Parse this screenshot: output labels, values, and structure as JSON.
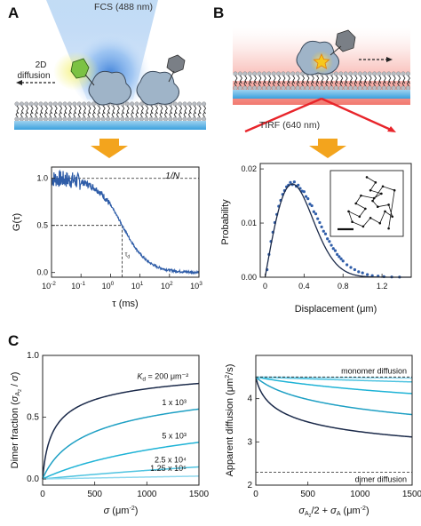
{
  "panels": {
    "A": {
      "letter": "A",
      "illustration": {
        "beam_label": "FCS (488 nm)",
        "diffusion_label_line1": "2D",
        "diffusion_label_line2": "diffusion"
      }
    },
    "B": {
      "letter": "B",
      "illustration": {
        "beam_label": "TIRF (640 nm)"
      }
    },
    "C": {
      "letter": "C"
    }
  },
  "colors": {
    "accent_arrow": "#f3a41d",
    "trace_blue": "#2f5da8",
    "cyan": "#1fb3d6",
    "dark_navy": "#1b2a4a",
    "tirf_red": "#e8252b",
    "membrane_blue": "#3aa0dd",
    "protein_fill": "#9fb4c8",
    "bleached_fill": "#7a7f86",
    "green_label": "#7cc243",
    "star_yellow": "#f7c81b"
  },
  "chart_data": [
    {
      "id": "A-fcs",
      "type": "line",
      "xlabel": "τ (ms)",
      "ylabel": "G(τ)",
      "xscale": "log",
      "xlim": [
        0.01,
        1000
      ],
      "ylim": [
        -0.05,
        1.12
      ],
      "x_ticks": [
        0.01,
        0.1,
        1,
        10,
        100,
        1000
      ],
      "x_tick_labels": [
        {
          "base": "10",
          "exp": "-2"
        },
        {
          "base": "10",
          "exp": "-1"
        },
        {
          "base": "10",
          "exp": "0"
        },
        {
          "base": "10",
          "exp": "1"
        },
        {
          "base": "10",
          "exp": "2"
        },
        {
          "base": "10",
          "exp": "3"
        }
      ],
      "y_ticks": [
        0.0,
        0.5,
        1.0
      ],
      "y_tick_labels": [
        "0.0",
        "0.5",
        "1.0"
      ],
      "annotations": {
        "one_over_n": "1/N",
        "tau_d": "τd",
        "tau_d_value": 2.5
      },
      "curve": {
        "amplitude": 1.0,
        "tau_d": 2.5
      }
    },
    {
      "id": "B-displacement",
      "type": "scatter",
      "xlabel": "Displacement (μm)",
      "ylabel": "Probability",
      "xlim": [
        -0.05,
        1.5
      ],
      "ylim": [
        0,
        0.021
      ],
      "x_ticks": [
        0,
        0.4,
        0.8,
        1.2
      ],
      "x_tick_labels": [
        "0",
        "0.4",
        "0.8",
        "1.2"
      ],
      "y_ticks": [
        0.0,
        0.01,
        0.02
      ],
      "y_tick_labels": [
        "0.00",
        "0.01",
        "0.02"
      ],
      "fit": {
        "model": "rayleigh",
        "sigma": 0.28,
        "peak": 0.0172
      },
      "points": [
        [
          0.02,
          0.0014
        ],
        [
          0.04,
          0.0042
        ],
        [
          0.06,
          0.0066
        ],
        [
          0.08,
          0.0083
        ],
        [
          0.1,
          0.0101
        ],
        [
          0.12,
          0.0116
        ],
        [
          0.14,
          0.0131
        ],
        [
          0.16,
          0.0142
        ],
        [
          0.18,
          0.0153
        ],
        [
          0.2,
          0.016
        ],
        [
          0.22,
          0.0167
        ],
        [
          0.24,
          0.017
        ],
        [
          0.26,
          0.0175
        ],
        [
          0.28,
          0.0171
        ],
        [
          0.3,
          0.0176
        ],
        [
          0.32,
          0.0168
        ],
        [
          0.34,
          0.017
        ],
        [
          0.36,
          0.0164
        ],
        [
          0.38,
          0.0159
        ],
        [
          0.4,
          0.0158
        ],
        [
          0.42,
          0.0149
        ],
        [
          0.44,
          0.0145
        ],
        [
          0.46,
          0.0135
        ],
        [
          0.48,
          0.0132
        ],
        [
          0.5,
          0.0121
        ],
        [
          0.52,
          0.0117
        ],
        [
          0.54,
          0.0108
        ],
        [
          0.56,
          0.0101
        ],
        [
          0.58,
          0.0093
        ],
        [
          0.6,
          0.0085
        ],
        [
          0.62,
          0.008
        ],
        [
          0.64,
          0.0071
        ],
        [
          0.66,
          0.0066
        ],
        [
          0.68,
          0.0059
        ],
        [
          0.7,
          0.0053
        ],
        [
          0.72,
          0.0049
        ],
        [
          0.74,
          0.0042
        ],
        [
          0.76,
          0.0038
        ],
        [
          0.78,
          0.0034
        ],
        [
          0.8,
          0.003
        ],
        [
          0.84,
          0.0023
        ],
        [
          0.88,
          0.0018
        ],
        [
          0.92,
          0.0014
        ],
        [
          0.96,
          0.001
        ],
        [
          1.0,
          0.0008
        ],
        [
          1.05,
          0.0005
        ],
        [
          1.1,
          0.0003
        ],
        [
          1.16,
          0.0002
        ],
        [
          1.22,
          0.0001
        ],
        [
          1.3,
          5e-05
        ],
        [
          1.38,
          3e-05
        ]
      ],
      "inset": {
        "trajectory": [
          [
            0.5,
            0.1
          ],
          [
            0.62,
            0.18
          ],
          [
            0.55,
            0.3
          ],
          [
            0.7,
            0.35
          ],
          [
            0.6,
            0.42
          ],
          [
            0.42,
            0.38
          ],
          [
            0.35,
            0.5
          ],
          [
            0.48,
            0.58
          ],
          [
            0.4,
            0.7
          ],
          [
            0.25,
            0.62
          ],
          [
            0.3,
            0.78
          ],
          [
            0.45,
            0.85
          ],
          [
            0.55,
            0.72
          ],
          [
            0.68,
            0.8
          ],
          [
            0.75,
            0.62
          ],
          [
            0.85,
            0.7
          ],
          [
            0.8,
            0.52
          ],
          [
            0.65,
            0.55
          ],
          [
            0.58,
            0.46
          ],
          [
            0.72,
            0.24
          ],
          [
            0.88,
            0.3
          ],
          [
            0.8,
            0.88
          ]
        ]
      }
    },
    {
      "id": "C-left",
      "type": "line",
      "xlabel": "σ (μm⁻²)",
      "ylabel": "Dimer fraction (σ_A2 / σ)",
      "xlim": [
        0,
        1500
      ],
      "ylim": [
        -0.05,
        1.0
      ],
      "x_ticks": [
        0,
        500,
        1000,
        1500
      ],
      "x_tick_labels": [
        "0",
        "500",
        "1000",
        "1500"
      ],
      "y_ticks": [
        0.0,
        0.5,
        1.0
      ],
      "y_tick_labels": [
        "0.0",
        "0.5",
        "1.0"
      ],
      "series": [
        {
          "kd": 200,
          "label_kd": "K",
          "label_sub": "d",
          "label_rest": " = 200 μm⁻²",
          "color": "#1b2a4a"
        },
        {
          "kd": 1000,
          "label": "1 x 10³",
          "color": "#1fa0c4"
        },
        {
          "kd": 5000,
          "label": "5 x 10³",
          "color": "#1fb3d6"
        },
        {
          "kd": 25000,
          "label": "2.5 x 10⁴",
          "color": "#4fc3e0"
        },
        {
          "kd": 125000,
          "label": "1.25 x 10⁵",
          "color": "#8fd8ee"
        }
      ]
    },
    {
      "id": "C-right",
      "type": "line",
      "xlabel": "σA2/2 + σA (μm⁻²)",
      "ylabel": "Apparent diffusion (μm²/s)",
      "xlim": [
        0,
        1500
      ],
      "ylim": [
        2.0,
        5.0
      ],
      "x_ticks": [
        0,
        500,
        1000,
        1500
      ],
      "x_tick_labels": [
        "0",
        "500",
        "1000",
        "1500"
      ],
      "y_ticks": [
        2,
        3,
        4
      ],
      "y_tick_labels": [
        "2",
        "3",
        "4"
      ],
      "reference_lines": [
        {
          "y": 4.5,
          "label": "monomer diffusion"
        },
        {
          "y": 2.3,
          "label": "dimer diffusion"
        }
      ],
      "series_kd": [
        200,
        1000,
        5000,
        25000,
        125000
      ]
    }
  ]
}
